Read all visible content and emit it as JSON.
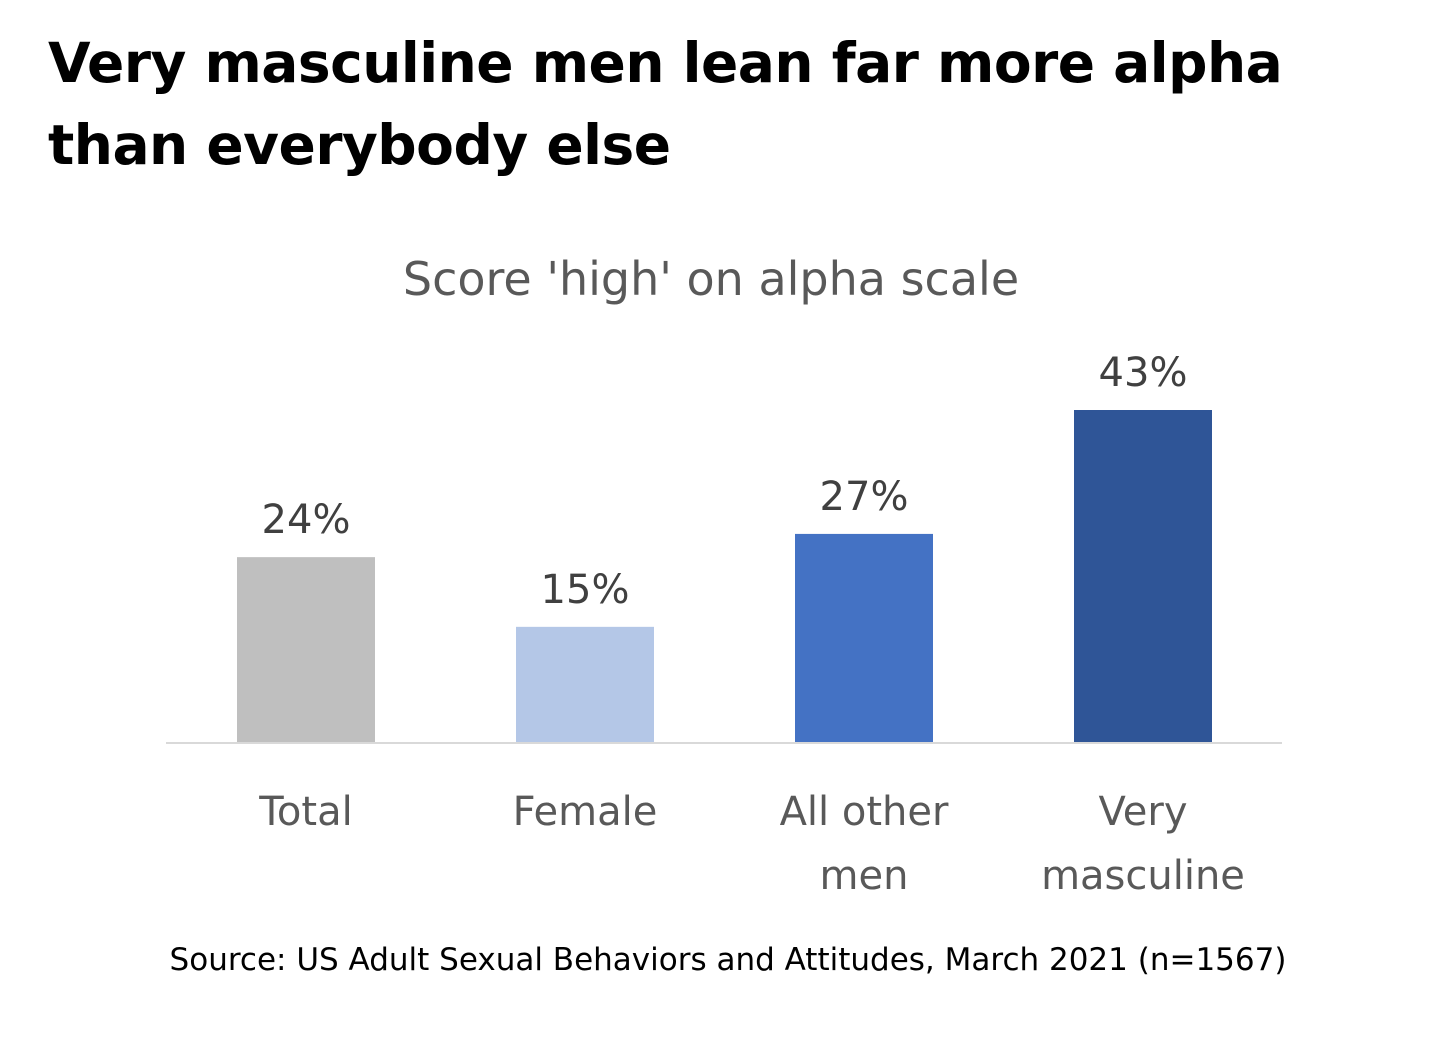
{
  "headline": "Very masculine men lean far more alpha than everybody else",
  "source": "Source: US Adult Sexual Behaviors and Attitudes, March 2021 (n=1567)",
  "chart_data": {
    "type": "bar",
    "title": "Score 'high' on alpha scale",
    "xlabel": "",
    "ylabel": "",
    "categories": [
      [
        "Total"
      ],
      [
        "Female"
      ],
      [
        "All other",
        "men"
      ],
      [
        "Very",
        "masculine"
      ]
    ],
    "values": [
      24,
      15,
      27,
      43
    ],
    "data_labels": [
      "24%",
      "15%",
      "27%",
      "43%"
    ],
    "colors": [
      "#bfbfbf",
      "#b4c7e7",
      "#4472c4",
      "#2f5597"
    ],
    "ylim": [
      0,
      43
    ],
    "grid": false,
    "legend": "none"
  }
}
